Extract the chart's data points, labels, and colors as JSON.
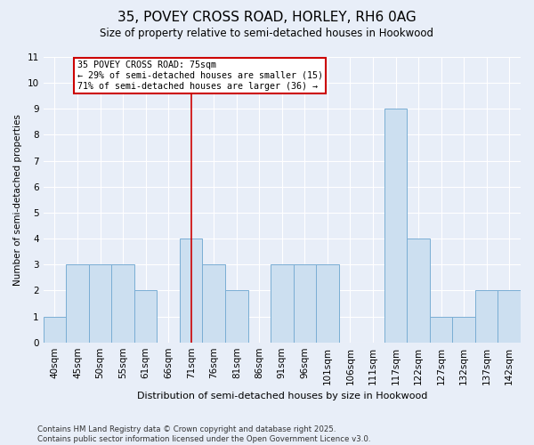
{
  "title1": "35, POVEY CROSS ROAD, HORLEY, RH6 0AG",
  "title2": "Size of property relative to semi-detached houses in Hookwood",
  "xlabel": "Distribution of semi-detached houses by size in Hookwood",
  "ylabel": "Number of semi-detached properties",
  "categories": [
    "40sqm",
    "45sqm",
    "50sqm",
    "55sqm",
    "61sqm",
    "66sqm",
    "71sqm",
    "76sqm",
    "81sqm",
    "86sqm",
    "91sqm",
    "96sqm",
    "101sqm",
    "106sqm",
    "111sqm",
    "117sqm",
    "122sqm",
    "127sqm",
    "132sqm",
    "137sqm",
    "142sqm"
  ],
  "values": [
    1,
    3,
    3,
    3,
    2,
    0,
    4,
    3,
    2,
    0,
    3,
    3,
    3,
    0,
    0,
    9,
    4,
    1,
    1,
    2,
    2
  ],
  "bar_color": "#ccdff0",
  "bar_edge_color": "#7aaed4",
  "highlight_color": "#cc0000",
  "vline_index": 6.5,
  "annotation_title": "35 POVEY CROSS ROAD: 75sqm",
  "annotation_line1": "← 29% of semi-detached houses are smaller (15)",
  "annotation_line2": "71% of semi-detached houses are larger (36) →",
  "annotation_box_color": "#cc0000",
  "ylim": [
    0,
    11
  ],
  "yticks": [
    0,
    1,
    2,
    3,
    4,
    5,
    6,
    7,
    8,
    9,
    10,
    11
  ],
  "footer1": "Contains HM Land Registry data © Crown copyright and database right 2025.",
  "footer2": "Contains public sector information licensed under the Open Government Licence v3.0.",
  "bg_color": "#e8eef8",
  "grid_color": "#ffffff"
}
